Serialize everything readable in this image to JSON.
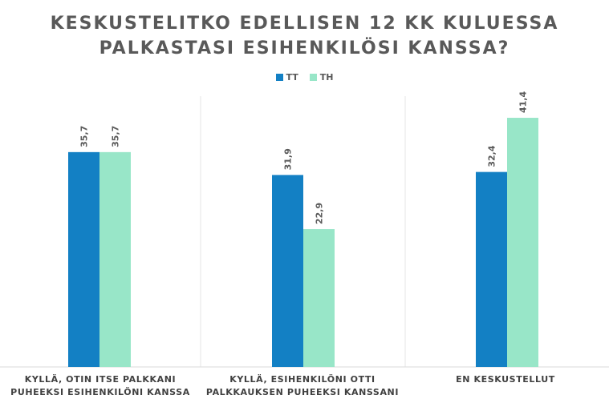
{
  "chart_data": {
    "type": "bar",
    "title_lines": [
      "KESKUSTELITKO EDELLISEN 12 KK KULUESSA",
      "PALKASTASI ESIHENKILÖSI KANSSA?"
    ],
    "categories": [
      [
        "KYLLÄ, OTIN ITSE PALKKANI",
        "PUHEEKSI ESIHENKILÖNI KANSSA"
      ],
      [
        "KYLLÄ, ESIHENKILÖNI OTTI",
        "PALKKAUKSEN PUHEEKSI KANSSANI"
      ],
      [
        "EN KESKUSTELLUT"
      ]
    ],
    "series": [
      {
        "name": "TT",
        "color": "#1380c4",
        "values": [
          35.7,
          31.9,
          32.4
        ],
        "labels": [
          "35,7",
          "31,9",
          "32,4"
        ]
      },
      {
        "name": "TH",
        "color": "#98e6c8",
        "values": [
          35.7,
          22.9,
          41.4
        ],
        "labels": [
          "35,7",
          "22,9",
          "41,4"
        ]
      }
    ],
    "ylim": [
      0,
      45
    ],
    "legend": "top-center",
    "grid": false
  }
}
